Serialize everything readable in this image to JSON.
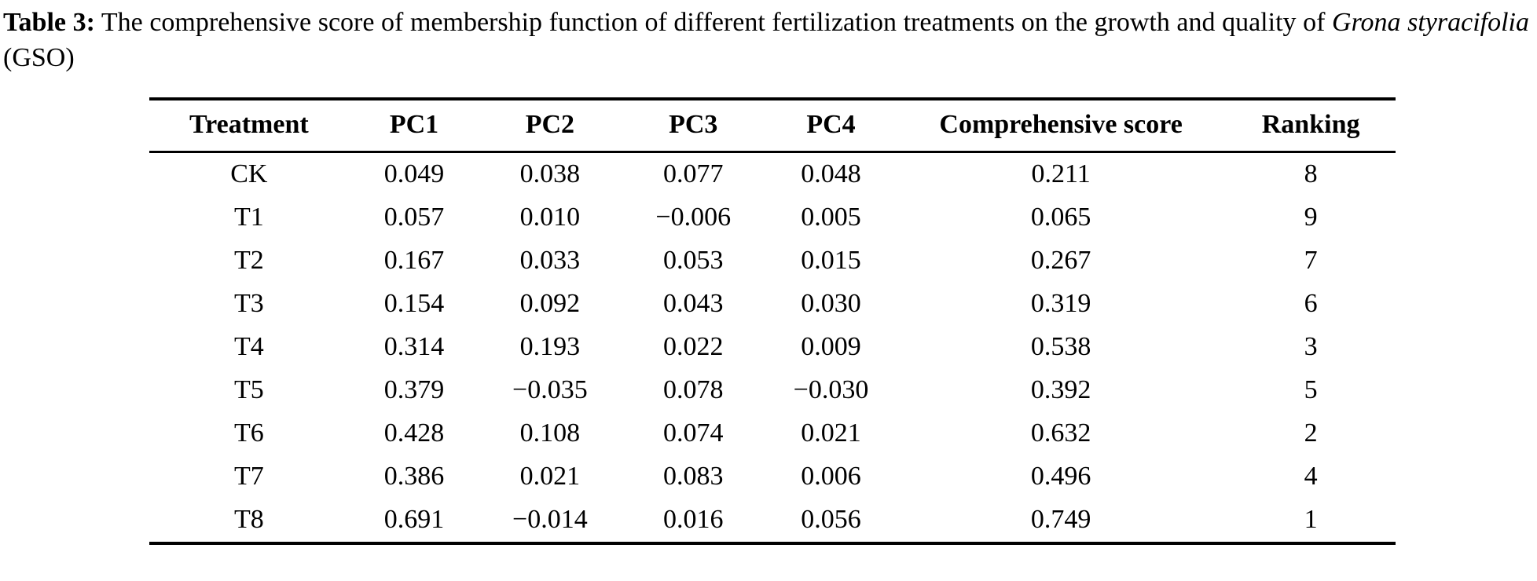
{
  "caption": {
    "label": "Table 3:",
    "text_before_species": " The comprehensive score of membership function of different fertilization treatments on the growth and quality of ",
    "species": "Grona styracifolia",
    "text_after_species": " (GSO)"
  },
  "table": {
    "columns": [
      "Treatment",
      "PC1",
      "PC2",
      "PC3",
      "PC4",
      "Comprehensive score",
      "Ranking"
    ],
    "rows": [
      [
        "CK",
        "0.049",
        "0.038",
        "0.077",
        "0.048",
        "0.211",
        "8"
      ],
      [
        "T1",
        "0.057",
        "0.010",
        "−0.006",
        "0.005",
        "0.065",
        "9"
      ],
      [
        "T2",
        "0.167",
        "0.033",
        "0.053",
        "0.015",
        "0.267",
        "7"
      ],
      [
        "T3",
        "0.154",
        "0.092",
        "0.043",
        "0.030",
        "0.319",
        "6"
      ],
      [
        "T4",
        "0.314",
        "0.193",
        "0.022",
        "0.009",
        "0.538",
        "3"
      ],
      [
        "T5",
        "0.379",
        "−0.035",
        "0.078",
        "−0.030",
        "0.392",
        "5"
      ],
      [
        "T6",
        "0.428",
        "0.108",
        "0.074",
        "0.021",
        "0.632",
        "2"
      ],
      [
        "T7",
        "0.386",
        "0.021",
        "0.083",
        "0.006",
        "0.496",
        "4"
      ],
      [
        "T8",
        "0.691",
        "−0.014",
        "0.016",
        "0.056",
        "0.749",
        "1"
      ]
    ]
  },
  "chart_data": {
    "type": "table",
    "title": "Table 3: The comprehensive score of membership function of different fertilization treatments on the growth and quality of Grona styracifolia (GSO)",
    "columns": [
      "Treatment",
      "PC1",
      "PC2",
      "PC3",
      "PC4",
      "Comprehensive score",
      "Ranking"
    ],
    "rows": [
      {
        "treatment": "CK",
        "pc1": 0.049,
        "pc2": 0.038,
        "pc3": 0.077,
        "pc4": 0.048,
        "comprehensive_score": 0.211,
        "ranking": 8
      },
      {
        "treatment": "T1",
        "pc1": 0.057,
        "pc2": 0.01,
        "pc3": -0.006,
        "pc4": 0.005,
        "comprehensive_score": 0.065,
        "ranking": 9
      },
      {
        "treatment": "T2",
        "pc1": 0.167,
        "pc2": 0.033,
        "pc3": 0.053,
        "pc4": 0.015,
        "comprehensive_score": 0.267,
        "ranking": 7
      },
      {
        "treatment": "T3",
        "pc1": 0.154,
        "pc2": 0.092,
        "pc3": 0.043,
        "pc4": 0.03,
        "comprehensive_score": 0.319,
        "ranking": 6
      },
      {
        "treatment": "T4",
        "pc1": 0.314,
        "pc2": 0.193,
        "pc3": 0.022,
        "pc4": 0.009,
        "comprehensive_score": 0.538,
        "ranking": 3
      },
      {
        "treatment": "T5",
        "pc1": 0.379,
        "pc2": -0.035,
        "pc3": 0.078,
        "pc4": -0.03,
        "comprehensive_score": 0.392,
        "ranking": 5
      },
      {
        "treatment": "T6",
        "pc1": 0.428,
        "pc2": 0.108,
        "pc3": 0.074,
        "pc4": 0.021,
        "comprehensive_score": 0.632,
        "ranking": 2
      },
      {
        "treatment": "T7",
        "pc1": 0.386,
        "pc2": 0.021,
        "pc3": 0.083,
        "pc4": 0.006,
        "comprehensive_score": 0.496,
        "ranking": 4
      },
      {
        "treatment": "T8",
        "pc1": 0.691,
        "pc2": -0.014,
        "pc3": 0.016,
        "pc4": 0.056,
        "comprehensive_score": 0.749,
        "ranking": 1
      }
    ],
    "text_color": "#000000",
    "background_color": "#ffffff"
  }
}
